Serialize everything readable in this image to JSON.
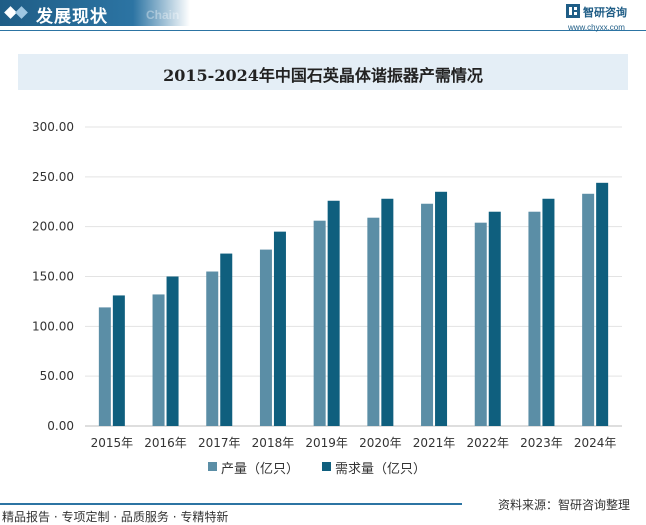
{
  "header": {
    "title": "发展现状",
    "title_en": "Chain",
    "logo_name": "智研咨询",
    "logo_url": "www.chyxx.com",
    "brand_color": "#1f5d86"
  },
  "footer": {
    "left_text": "精品报告 · 专项定制 · 品质服务 · 专精特新",
    "source_text": "资料来源：智研咨询整理"
  },
  "chart_data": {
    "type": "bar",
    "title": "2015-2024年中国石英晶体谐振器产需情况",
    "categories": [
      "2015年",
      "2016年",
      "2017年",
      "2018年",
      "2019年",
      "2020年",
      "2021年",
      "2022年",
      "2023年",
      "2024年"
    ],
    "series": [
      {
        "name": "产量（亿只）",
        "color": "#5b8ea6",
        "values": [
          119,
          132,
          155,
          177,
          206,
          209,
          223,
          204,
          215,
          233
        ]
      },
      {
        "name": "需求量（亿只）",
        "color": "#0f5f7e",
        "values": [
          131,
          150,
          173,
          195,
          226,
          228,
          235,
          215,
          228,
          244
        ]
      }
    ],
    "ylim": [
      0,
      300
    ],
    "yticks": [
      "0.00",
      "50.00",
      "100.00",
      "150.00",
      "200.00",
      "250.00",
      "300.00"
    ],
    "grid": true,
    "legend_position": "bottom"
  }
}
